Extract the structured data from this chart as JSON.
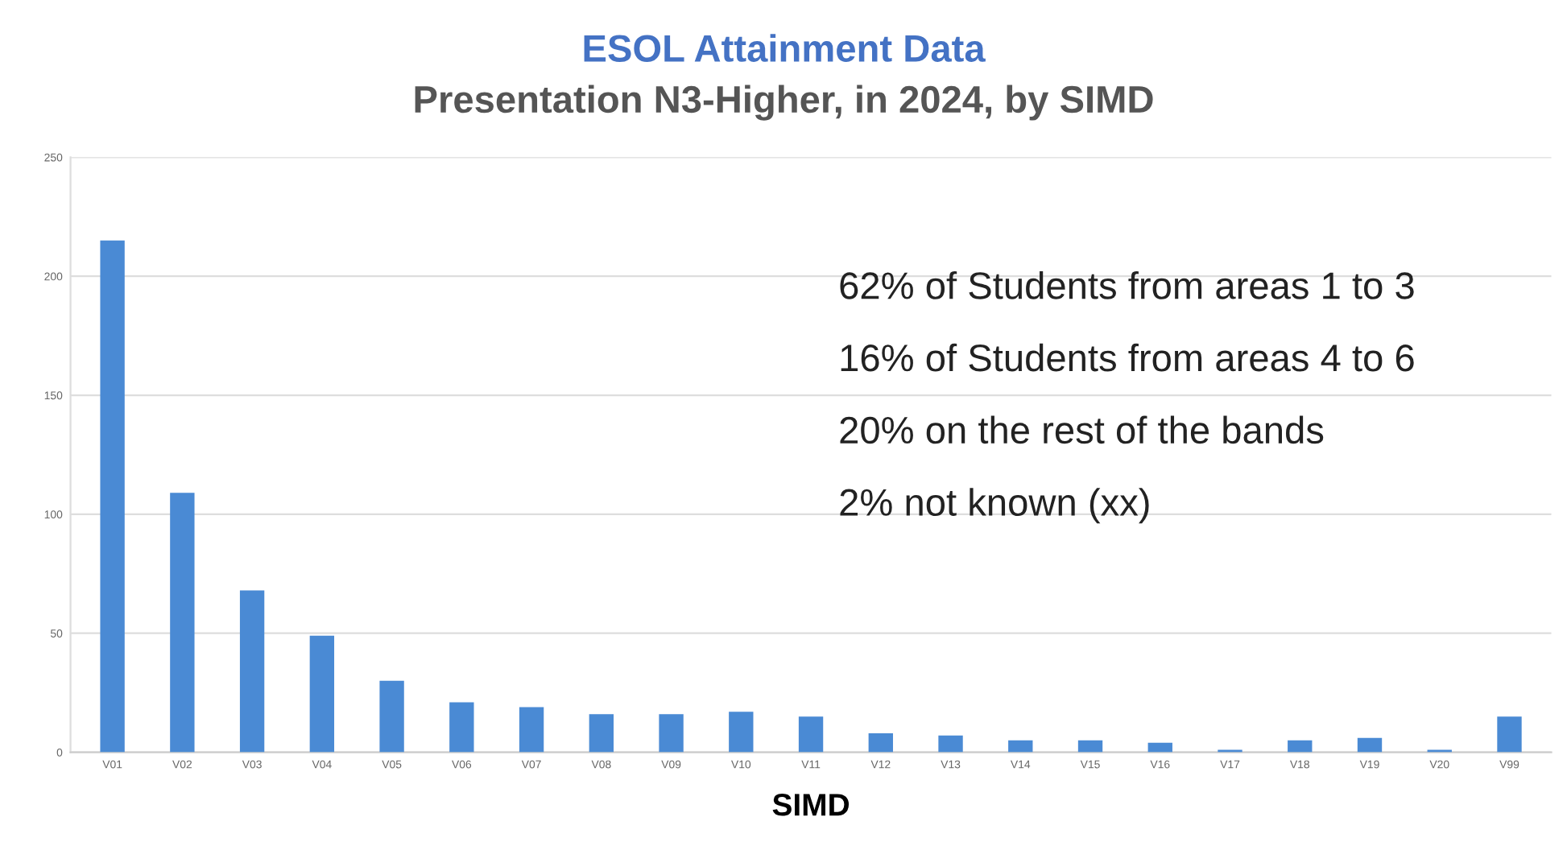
{
  "chart_data": {
    "type": "bar",
    "title": "ESOL Attainment Data",
    "subtitle": "Presentation N3-Higher, in 2024, by SIMD",
    "xlabel": "SIMD",
    "categories": [
      "V01",
      "V02",
      "V03",
      "V04",
      "V05",
      "V06",
      "V07",
      "V08",
      "V09",
      "V10",
      "V11",
      "V12",
      "V13",
      "V14",
      "V15",
      "V16",
      "V17",
      "V18",
      "V19",
      "V20",
      "V99"
    ],
    "values": [
      215,
      109,
      68,
      49,
      30,
      21,
      19,
      16,
      16,
      17,
      15,
      8,
      7,
      5,
      5,
      4,
      1,
      5,
      6,
      1,
      15
    ],
    "color": "#4a8ad4",
    "ylim": [
      0,
      250
    ],
    "yticks": [
      0,
      50,
      100,
      150,
      200,
      250
    ],
    "grid": "y",
    "annotations": [
      "62% of Students from areas 1 to 3",
      "16% of Students from areas 4 to 6",
      "20% on the rest of the bands",
      "2% not known (xx)"
    ]
  }
}
